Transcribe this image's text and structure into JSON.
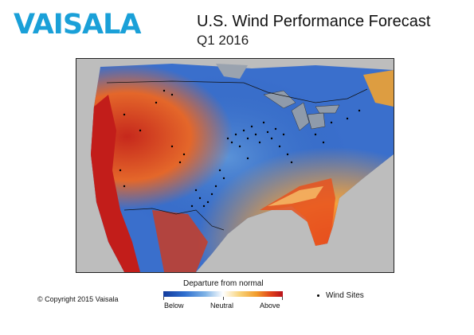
{
  "header": {
    "logo": "VAISALA",
    "title": "U.S. Wind Performance Forecast",
    "subtitle": "Q1 2016"
  },
  "legend": {
    "title": "Departure from normal",
    "below": "Below",
    "neutral": "Neutral",
    "above": "Above",
    "sites": "Wind Sites"
  },
  "footer": {
    "copyright": "© Copyright 2015 Vaisala"
  },
  "colors": {
    "logo": "#1aa0d8",
    "below": "#123a9c",
    "neutral": "#ffffff",
    "above": "#b8101a",
    "ocean": "#bdbdbd"
  }
}
